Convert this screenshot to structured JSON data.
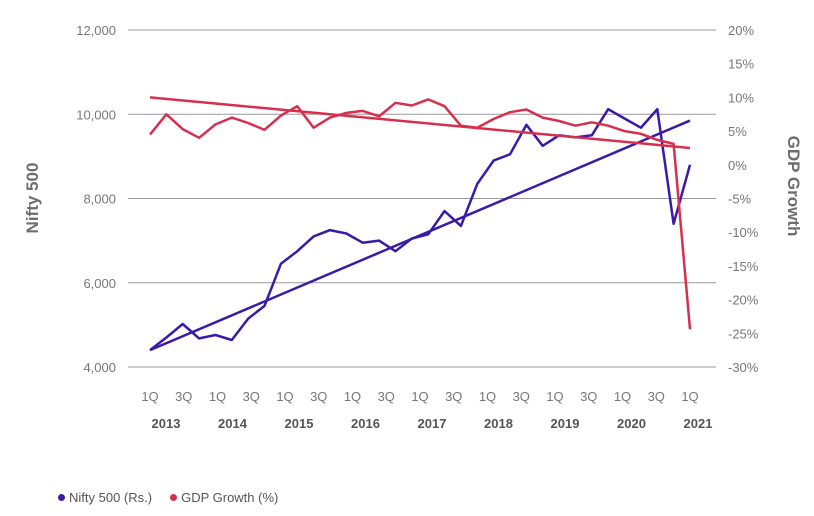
{
  "chart_data": {
    "type": "line",
    "y_left": {
      "label": "Nifty 500",
      "ticks": [
        "4,000",
        "6,000",
        "8,000",
        "10,000",
        "12,000"
      ],
      "tick_values": [
        4000,
        6000,
        8000,
        10000,
        12000
      ],
      "lim": [
        4000,
        12000
      ]
    },
    "y_right": {
      "label": "GDP Growth",
      "ticks": [
        "-30%",
        "-25%",
        "-20%",
        "-15%",
        "-10%",
        "-5%",
        "0%",
        "5%",
        "10%",
        "15%",
        "20%"
      ],
      "tick_values": [
        -30,
        -25,
        -20,
        -15,
        -10,
        -5,
        0,
        5,
        10,
        15,
        20
      ],
      "lim": [
        -30,
        20
      ]
    },
    "x_quarter_labels": [
      "1Q",
      "3Q",
      "1Q",
      "3Q",
      "1Q",
      "3Q",
      "1Q",
      "3Q",
      "1Q",
      "3Q",
      "1Q",
      "3Q",
      "1Q",
      "3Q",
      "1Q",
      "3Q",
      "1Q"
    ],
    "x_year_labels": [
      "2013",
      "2014",
      "2015",
      "2016",
      "2017",
      "2018",
      "2019",
      "2020",
      "2021"
    ],
    "grid": "horizontal",
    "legend_position": "bottom-left",
    "series": [
      {
        "name": "Nifty 500 (Rs.)",
        "axis": "left",
        "color": "#3a1aa8",
        "values": [
          4400,
          4700,
          5020,
          4680,
          4760,
          4640,
          5150,
          5450,
          6450,
          6750,
          7100,
          7250,
          7170,
          6950,
          7000,
          6750,
          7050,
          7150,
          7700,
          7350,
          8350,
          8900,
          9050,
          9750,
          9250,
          9500,
          9450,
          9500,
          10120,
          9900,
          9680,
          10120,
          7400,
          8800
        ],
        "trend": [
          4400,
          9850
        ]
      },
      {
        "name": "GDP Growth (%)",
        "axis": "right",
        "color": "#d6304e",
        "values": [
          4.5,
          7.5,
          5.3,
          4.0,
          6.0,
          7.0,
          6.2,
          5.2,
          7.3,
          8.7,
          5.5,
          7.0,
          7.7,
          8.0,
          7.2,
          9.2,
          8.8,
          9.7,
          8.7,
          5.8,
          5.5,
          6.8,
          7.8,
          8.2,
          7.0,
          6.5,
          5.8,
          6.3,
          5.8,
          5.0,
          4.6,
          3.7,
          3.1,
          -24.4
        ],
        "trend": [
          10,
          2.5
        ]
      }
    ]
  }
}
